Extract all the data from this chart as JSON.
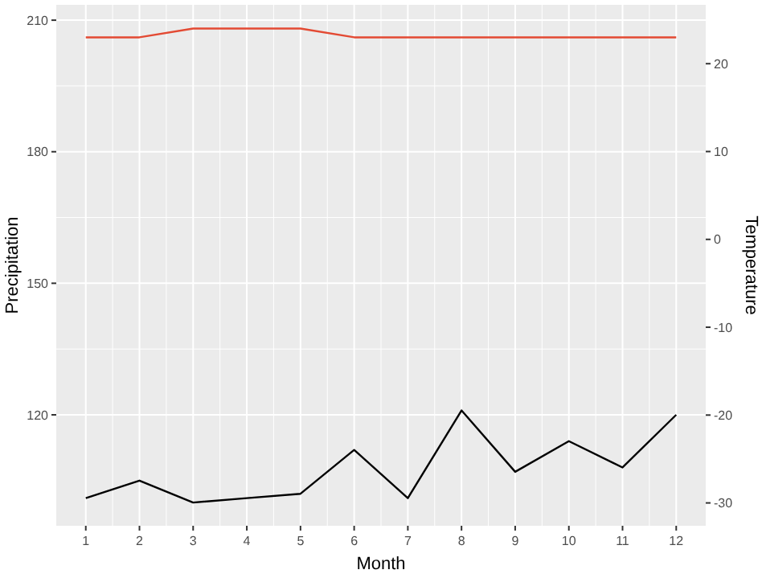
{
  "chart_data": {
    "type": "line",
    "xlabel": "Month",
    "ylabel": "Precipitation",
    "y2label": "Temperature",
    "x": [
      1,
      2,
      3,
      4,
      5,
      6,
      7,
      8,
      9,
      10,
      11,
      12
    ],
    "series": [
      {
        "color": "#000000",
        "values": [
          101,
          105,
          100,
          101,
          102,
          112,
          101,
          121,
          107,
          114,
          108,
          120
        ]
      },
      {
        "color": "#e34a33",
        "axis": "y2",
        "values": [
          23,
          23,
          24,
          24,
          24,
          23,
          23,
          23,
          23,
          23,
          23,
          23
        ]
      }
    ],
    "xlim": [
      0.45,
      12.55
    ],
    "xticks": [
      1,
      2,
      3,
      4,
      5,
      6,
      7,
      8,
      9,
      10,
      11,
      12
    ],
    "ylim": [
      94.7,
      213.5
    ],
    "yticks": [
      120,
      150,
      180,
      210
    ],
    "y2lim": [
      -32.6,
      26.7
    ],
    "y2ticks": [
      -30,
      -20,
      -10,
      0,
      10,
      20
    ],
    "grid": true
  }
}
